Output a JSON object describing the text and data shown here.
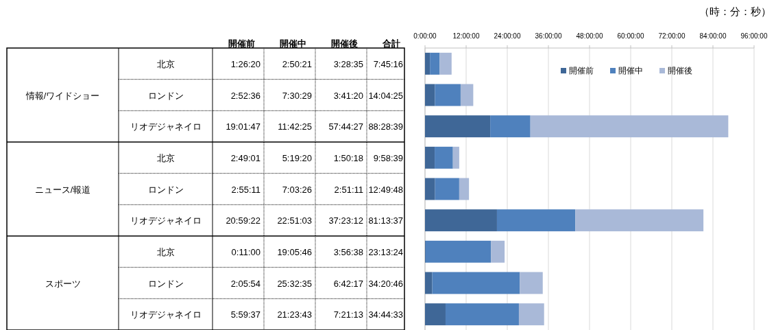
{
  "chart_data": {
    "type": "bar",
    "orientation": "horizontal",
    "stacked": true,
    "categories": [
      "北京",
      "ロンドン",
      "リオデジャネイロ",
      "北京",
      "ロンドン",
      "リオデジャネイロ",
      "北京",
      "ロンドン",
      "リオデジャネイロ"
    ],
    "series": [
      {
        "name": "開催前",
        "color": "#3f6797",
        "values": [
          1.43889,
          2.87667,
          19.02972,
          2.81694,
          2.91972,
          20.98944,
          0.18333,
          2.09833,
          5.99361
        ],
        "value_labels": [
          "1:26:20",
          "2:52:36",
          "19:01:47",
          "2:49:01",
          "2:55:11",
          "20:59:22",
          "0:11:00",
          "2:05:54",
          "5:59:37"
        ]
      },
      {
        "name": "開催中",
        "color": "#4f81bd",
        "values": [
          2.83917,
          7.50806,
          11.70694,
          5.32222,
          7.05722,
          22.85083,
          19.09611,
          25.54306,
          21.39528
        ],
        "value_labels": [
          "2:50:21",
          "7:30:29",
          "11:42:25",
          "5:19:20",
          "7:03:26",
          "22:51:03",
          "19:05:46",
          "25:32:35",
          "21:23:43"
        ]
      },
      {
        "name": "開催後",
        "color": "#a9b9d8",
        "values": [
          3.47639,
          3.68889,
          57.74083,
          1.83833,
          2.85306,
          37.38667,
          3.94389,
          6.70472,
          7.35361
        ],
        "value_labels": [
          "3:28:35",
          "3:41:20",
          "57:44:27",
          "1:50:18",
          "2:51:11",
          "37:23:12",
          "3:56:38",
          "6:42:17",
          "7:21:13"
        ]
      }
    ],
    "totals": [
      "7:45:16",
      "14:04:25",
      "88:28:39",
      "9:58:39",
      "12:49:48",
      "81:13:37",
      "23:13:24",
      "34:20:46",
      "34:44:33"
    ],
    "x2lim": [
      0,
      96
    ],
    "x2ticks": [
      {
        "value": 0,
        "label": "0:00:00"
      },
      {
        "value": 12,
        "label": "12:00:00"
      },
      {
        "value": 24,
        "label": "24:00:00"
      },
      {
        "value": 36,
        "label": "36:00:00"
      },
      {
        "value": 48,
        "label": "48:00:00"
      },
      {
        "value": 60,
        "label": "60:00:00"
      },
      {
        "value": 72,
        "label": "72:00:00"
      },
      {
        "value": 84,
        "label": "84:00:00"
      },
      {
        "value": 96,
        "label": "96:00:00"
      }
    ],
    "grid": "x",
    "legend": "top right",
    "annotations": [
      "（時：分：秒）",
      "合計",
      "情報/ワイドショー",
      "ニュース/報道",
      "スポーツ"
    ]
  }
}
